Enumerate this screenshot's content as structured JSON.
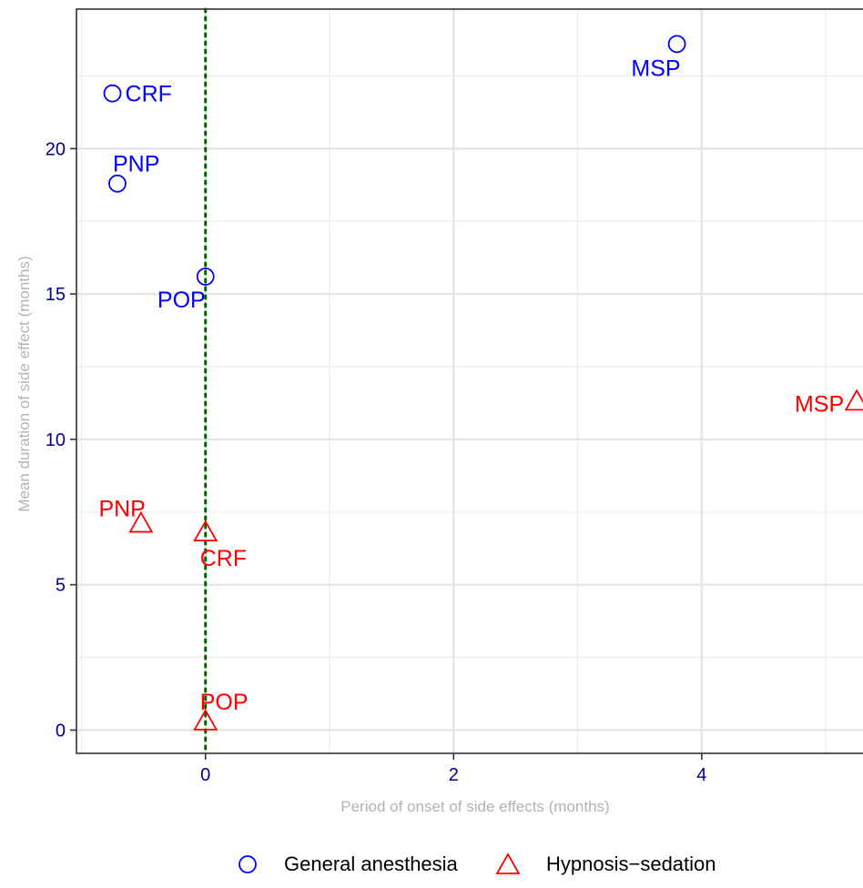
{
  "chart_data": {
    "type": "scatter",
    "title": "",
    "xlabel": "Period of onset of side effects (months)",
    "ylabel": "Mean duration of side effect (months)",
    "xlim": [
      -1.04,
      5.3
    ],
    "ylim": [
      -0.8,
      24.8
    ],
    "xticks": [
      0,
      2,
      4
    ],
    "yticks": [
      0,
      5,
      10,
      15,
      20
    ],
    "grid": true,
    "reference_line": {
      "x": 0,
      "style": "dotted",
      "color": "#006400"
    },
    "legend_position": "bottom",
    "series": [
      {
        "name": "General anesthesia",
        "marker": "circle",
        "color": "#0000ff",
        "points": [
          {
            "label": "CRF",
            "x": -0.75,
            "y": 21.9
          },
          {
            "label": "PNP",
            "x": -0.71,
            "y": 18.8
          },
          {
            "label": "POP",
            "x": 0.0,
            "y": 15.6
          },
          {
            "label": "MSP",
            "x": 3.8,
            "y": 23.6
          }
        ]
      },
      {
        "name": "Hypnosis−sedation",
        "marker": "triangle",
        "color": "#ff0000",
        "points": [
          {
            "label": "PNP",
            "x": -0.52,
            "y": 7.1
          },
          {
            "label": "CRF",
            "x": 0.0,
            "y": 6.8
          },
          {
            "label": "POP",
            "x": 0.0,
            "y": 0.3
          },
          {
            "label": "MSP",
            "x": 5.25,
            "y": 11.3
          }
        ]
      }
    ]
  }
}
